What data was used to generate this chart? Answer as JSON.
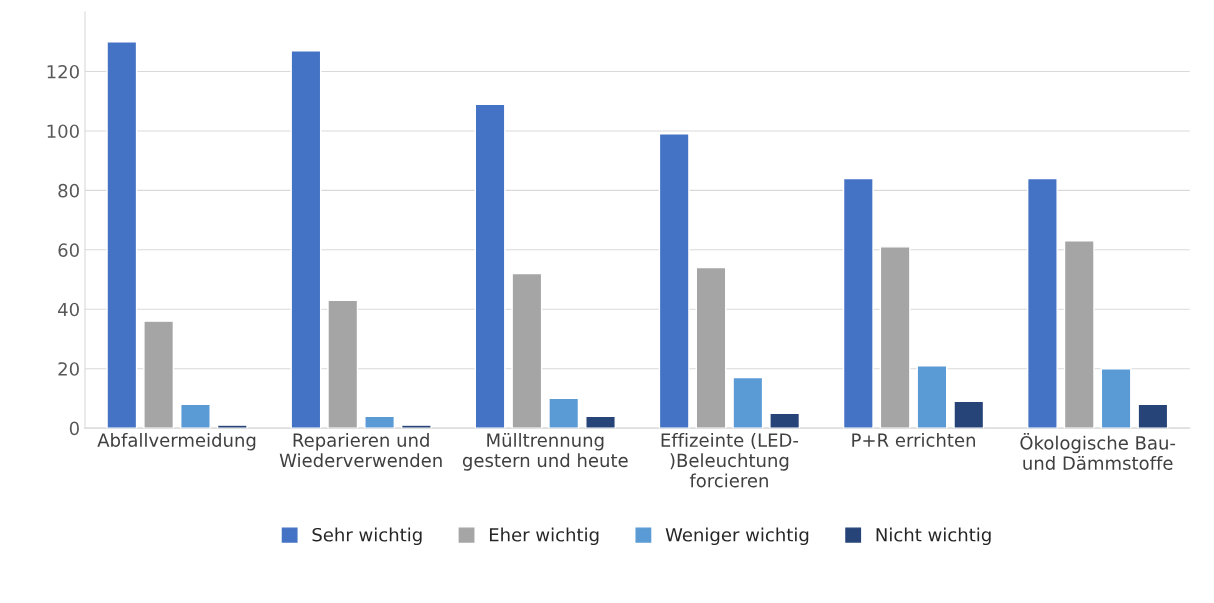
{
  "chart_data": {
    "type": "bar",
    "categories": [
      "Abfallvermeidung",
      "Reparieren und\nWiederverwenden",
      "Mülltrennung\ngestern und heute",
      "Effizeinte (LED-\n)Beleuchtung\nforcieren",
      "P+R errichten",
      "Ökologische Bau-\nund Dämmstoffe"
    ],
    "series": [
      {
        "name": "Sehr wichtig",
        "color": "#4472c4",
        "values": [
          130,
          127,
          109,
          99,
          84,
          84
        ]
      },
      {
        "name": "Eher wichtig",
        "color": "#a5a5a5",
        "values": [
          36,
          43,
          52,
          54,
          61,
          63
        ]
      },
      {
        "name": "Weniger wichtig",
        "color": "#5b9bd5",
        "values": [
          8,
          4,
          10,
          17,
          21,
          20
        ]
      },
      {
        "name": "Nicht wichtig",
        "color": "#264478",
        "values": [
          1,
          1,
          4,
          5,
          9,
          8
        ]
      }
    ],
    "ylim": [
      0,
      140
    ],
    "yticks": [
      0,
      20,
      40,
      60,
      80,
      100,
      120
    ],
    "grid": "y",
    "legend": "bottom"
  }
}
